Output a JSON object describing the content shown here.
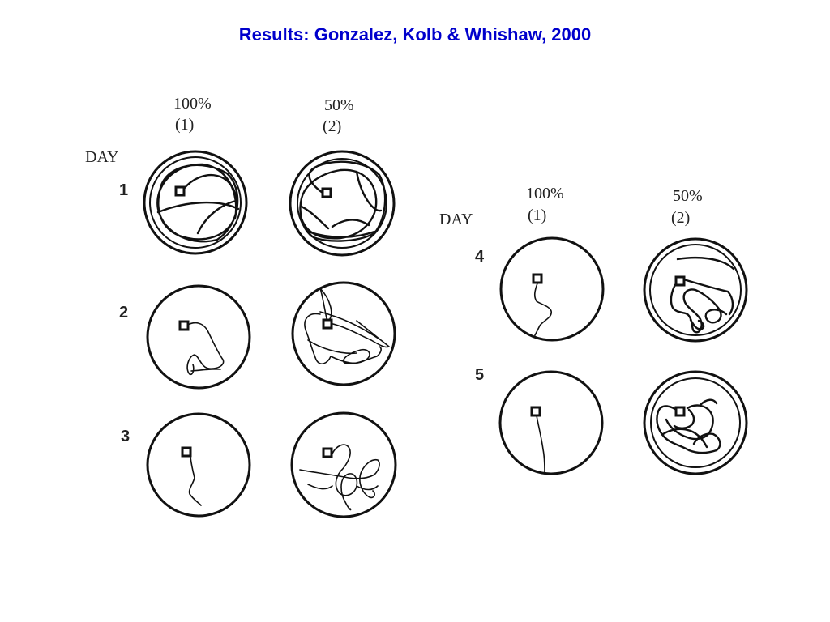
{
  "title": "Results: Gonzalez, Kolb & Whishaw, 2000",
  "colors": {
    "title": "#0000cc",
    "ink": "#111111"
  },
  "panels": [
    {
      "day_label": "DAY",
      "columns": [
        {
          "percent": "100%",
          "group": "(1)"
        },
        {
          "percent": "50%",
          "group": "(2)"
        }
      ],
      "days": [
        "1",
        "2",
        "3"
      ]
    },
    {
      "day_label": "DAY",
      "columns": [
        {
          "percent": "100%",
          "group": "(1)"
        },
        {
          "percent": "50%",
          "group": "(2)"
        }
      ],
      "days": [
        "4",
        "5"
      ]
    }
  ],
  "trials": [
    {
      "day": "1",
      "group": "(1)",
      "pool_ring": "double"
    },
    {
      "day": "1",
      "group": "(2)",
      "pool_ring": "double"
    },
    {
      "day": "2",
      "group": "(1)",
      "pool_ring": "single"
    },
    {
      "day": "2",
      "group": "(2)",
      "pool_ring": "single"
    },
    {
      "day": "3",
      "group": "(1)",
      "pool_ring": "single"
    },
    {
      "day": "3",
      "group": "(2)",
      "pool_ring": "single"
    },
    {
      "day": "4",
      "group": "(1)",
      "pool_ring": "single"
    },
    {
      "day": "4",
      "group": "(2)",
      "pool_ring": "double"
    },
    {
      "day": "5",
      "group": "(1)",
      "pool_ring": "single"
    },
    {
      "day": "5",
      "group": "(2)",
      "pool_ring": "double"
    }
  ]
}
